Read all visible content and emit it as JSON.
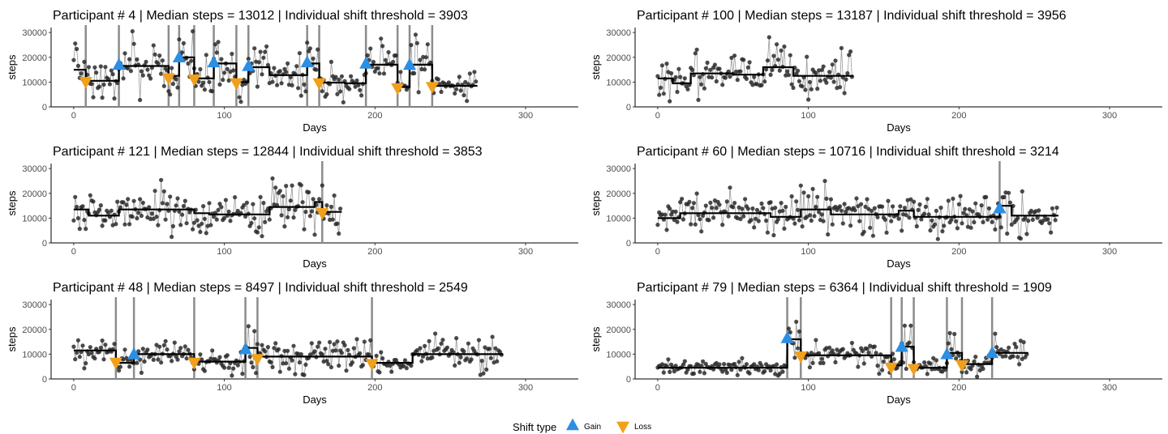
{
  "legend": {
    "title": "Shift type",
    "items": [
      {
        "label": "Gain",
        "color": "#2b8fe3",
        "marker": "triangle-up"
      },
      {
        "label": "Loss",
        "color": "#f0a01a",
        "marker": "triangle-down"
      }
    ]
  },
  "chart_data": [
    {
      "type": "line",
      "title": "Participant # 4 | Median steps = 13012 | Individual shift threshold = 3903",
      "xlabel": "Days",
      "ylabel": "steps",
      "xlim": [
        -15,
        335
      ],
      "ylim": [
        0,
        32000
      ],
      "xticks": [
        0,
        100,
        200,
        300
      ],
      "yticks": [
        0,
        10000,
        20000,
        30000
      ],
      "days": 268,
      "seed": 4,
      "segments": [
        [
          0,
          8,
          15000
        ],
        [
          8,
          30,
          10500
        ],
        [
          30,
          63,
          16500
        ],
        [
          63,
          70,
          12500
        ],
        [
          70,
          80,
          20000
        ],
        [
          80,
          93,
          11500
        ],
        [
          93,
          108,
          17500
        ],
        [
          108,
          116,
          10000
        ],
        [
          116,
          130,
          16000
        ],
        [
          130,
          155,
          12800
        ],
        [
          155,
          163,
          17500
        ],
        [
          163,
          180,
          9800
        ],
        [
          180,
          194,
          9500
        ],
        [
          194,
          215,
          17000
        ],
        [
          215,
          223,
          8000
        ],
        [
          223,
          238,
          17000
        ],
        [
          238,
          268,
          8500
        ]
      ],
      "vlines": [
        8,
        30,
        63,
        70,
        80,
        93,
        108,
        116,
        155,
        163,
        194,
        215,
        223,
        238
      ],
      "gains": [
        [
          30,
          17000
        ],
        [
          70,
          20000
        ],
        [
          93,
          18000
        ],
        [
          116,
          16500
        ],
        [
          155,
          18000
        ],
        [
          194,
          17500
        ],
        [
          223,
          17000
        ]
      ],
      "losses": [
        [
          8,
          10000
        ],
        [
          63,
          11500
        ],
        [
          80,
          11000
        ],
        [
          108,
          9500
        ],
        [
          163,
          9500
        ],
        [
          215,
          7500
        ],
        [
          238,
          8000
        ]
      ]
    },
    {
      "type": "line",
      "title": "Participant # 100 | Median steps = 13187 | Individual shift threshold = 3956",
      "xlabel": "Days",
      "ylabel": "steps",
      "xlim": [
        -15,
        335
      ],
      "ylim": [
        0,
        32000
      ],
      "xticks": [
        0,
        100,
        200,
        300
      ],
      "yticks": [
        0,
        10000,
        20000,
        30000
      ],
      "days": 130,
      "seed": 100,
      "segments": [
        [
          0,
          10,
          11500
        ],
        [
          10,
          22,
          9500
        ],
        [
          22,
          50,
          13500
        ],
        [
          50,
          70,
          13000
        ],
        [
          70,
          90,
          16000
        ],
        [
          90,
          130,
          12500
        ]
      ],
      "vlines": [],
      "gains": [],
      "losses": []
    },
    {
      "type": "line",
      "title": "Participant # 121 | Median steps = 12844 | Individual shift threshold = 3853",
      "xlabel": "Days",
      "ylabel": "steps",
      "xlim": [
        -15,
        335
      ],
      "ylim": [
        0,
        32000
      ],
      "xticks": [
        0,
        100,
        200,
        300
      ],
      "yticks": [
        0,
        10000,
        20000,
        30000
      ],
      "days": 178,
      "seed": 121,
      "segments": [
        [
          0,
          10,
          13500
        ],
        [
          10,
          30,
          11000
        ],
        [
          30,
          80,
          13500
        ],
        [
          80,
          90,
          12000
        ],
        [
          90,
          130,
          11500
        ],
        [
          130,
          160,
          14500
        ],
        [
          160,
          165,
          16500
        ],
        [
          165,
          178,
          12500
        ]
      ],
      "vlines": [
        165
      ],
      "gains": [],
      "losses": [
        [
          165,
          12000
        ]
      ]
    },
    {
      "type": "line",
      "title": "Participant # 60 | Median steps = 10716 | Individual shift threshold = 3214",
      "xlabel": "Days",
      "ylabel": "steps",
      "xlim": [
        -15,
        335
      ],
      "ylim": [
        0,
        32000
      ],
      "xticks": [
        0,
        100,
        200,
        300
      ],
      "yticks": [
        0,
        10000,
        20000,
        30000
      ],
      "days": 266,
      "seed": 60,
      "segments": [
        [
          0,
          15,
          10000
        ],
        [
          15,
          35,
          12000
        ],
        [
          35,
          75,
          12000
        ],
        [
          75,
          95,
          10500
        ],
        [
          95,
          115,
          13500
        ],
        [
          115,
          140,
          11500
        ],
        [
          140,
          160,
          11500
        ],
        [
          160,
          170,
          13000
        ],
        [
          170,
          227,
          10500
        ],
        [
          227,
          235,
          15000
        ],
        [
          235,
          266,
          11000
        ]
      ],
      "vlines": [
        227
      ],
      "gains": [
        [
          227,
          14000
        ]
      ],
      "losses": []
    },
    {
      "type": "line",
      "title": "Participant # 48 | Median steps = 8497 | Individual shift threshold = 2549",
      "xlabel": "Days",
      "ylabel": "steps",
      "xlim": [
        -15,
        335
      ],
      "ylim": [
        0,
        32000
      ],
      "xticks": [
        0,
        100,
        200,
        300
      ],
      "yticks": [
        0,
        10000,
        20000,
        30000
      ],
      "days": 285,
      "seed": 48,
      "segments": [
        [
          0,
          28,
          11500
        ],
        [
          28,
          40,
          6500
        ],
        [
          40,
          80,
          10000
        ],
        [
          80,
          114,
          7000
        ],
        [
          114,
          122,
          12500
        ],
        [
          122,
          198,
          9000
        ],
        [
          198,
          225,
          6500
        ],
        [
          225,
          285,
          10000
        ]
      ],
      "vlines": [
        28,
        40,
        80,
        114,
        122,
        198
      ],
      "gains": [
        [
          40,
          10000
        ],
        [
          114,
          12000
        ]
      ],
      "losses": [
        [
          28,
          6500
        ],
        [
          80,
          6500
        ],
        [
          122,
          8000
        ],
        [
          198,
          6000
        ]
      ]
    },
    {
      "type": "line",
      "title": "Participant # 79 | Median steps = 6364 | Individual shift threshold = 1909",
      "xlabel": "Days",
      "ylabel": "steps",
      "xlim": [
        -15,
        335
      ],
      "ylim": [
        0,
        32000
      ],
      "xticks": [
        0,
        100,
        200,
        300
      ],
      "yticks": [
        0,
        10000,
        20000,
        30000
      ],
      "days": 246,
      "seed": 79,
      "segments": [
        [
          0,
          86,
          4500
        ],
        [
          86,
          95,
          16000
        ],
        [
          95,
          155,
          9500
        ],
        [
          155,
          162,
          5500
        ],
        [
          162,
          170,
          13000
        ],
        [
          170,
          192,
          4500
        ],
        [
          192,
          202,
          10500
        ],
        [
          202,
          222,
          6000
        ],
        [
          222,
          246,
          10500
        ]
      ],
      "vlines": [
        86,
        95,
        155,
        162,
        170,
        192,
        202,
        222
      ],
      "gains": [
        [
          86,
          16500
        ],
        [
          162,
          13000
        ],
        [
          192,
          10000
        ],
        [
          222,
          10500
        ]
      ],
      "losses": [
        [
          95,
          9000
        ],
        [
          155,
          4500
        ],
        [
          170,
          4000
        ],
        [
          202,
          5500
        ]
      ]
    }
  ]
}
